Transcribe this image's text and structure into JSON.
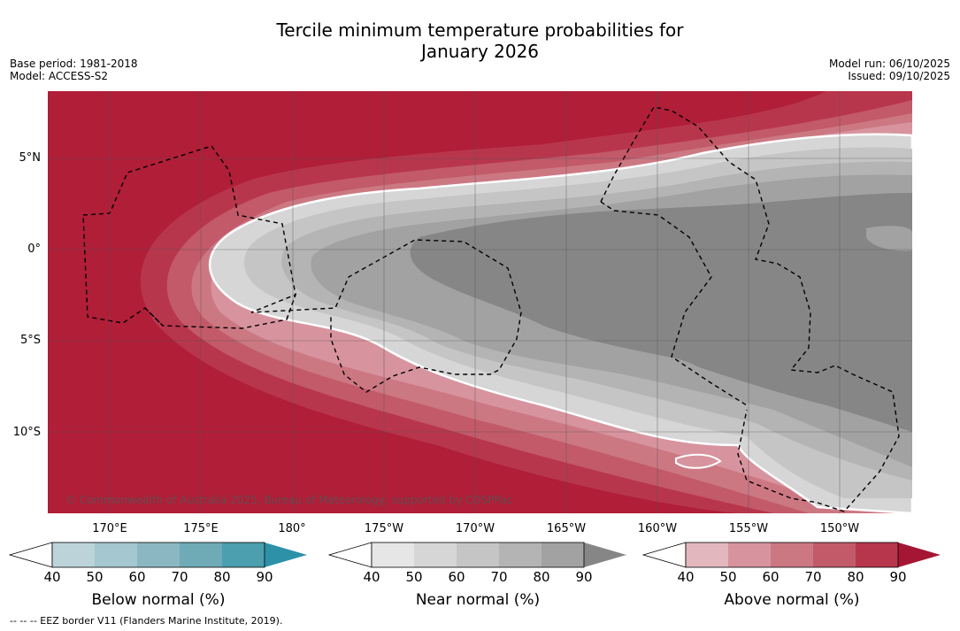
{
  "title_line1": "Tercile minimum temperature probabilities for",
  "title_line2": "January 2026",
  "meta_left": {
    "base_period": "Base period: 1981-2018",
    "model": "Model: ACCESS-S2"
  },
  "meta_right": {
    "model_run": "Model run: 06/10/2025",
    "issued": "Issued: 09/10/2025"
  },
  "lat_labels": [
    "5°N",
    "0°",
    "5°S",
    "10°S"
  ],
  "lon_labels": [
    "170°E",
    "175°E",
    "180°",
    "175°W",
    "170°W",
    "165°W",
    "160°W",
    "155°W",
    "150°W"
  ],
  "copyright": "© Commonwealth of Australia 2025, Bureau of Meteorology, supported by COSPPac",
  "colorbars": [
    {
      "title": "Below normal (%)",
      "ticks": [
        "40",
        "50",
        "60",
        "70",
        "80",
        "90"
      ],
      "colors": [
        "#ffffff",
        "#bdd3da",
        "#a5c7cf",
        "#8bb7c2",
        "#6eabb7",
        "#4c9fae",
        "#2d92a8"
      ]
    },
    {
      "title": "Near normal (%)",
      "ticks": [
        "40",
        "50",
        "60",
        "70",
        "80",
        "90"
      ],
      "colors": [
        "#ffffff",
        "#e6e6e6",
        "#d6d6d6",
        "#c5c5c5",
        "#b4b4b4",
        "#a2a2a2",
        "#868686"
      ]
    },
    {
      "title": "Above normal (%)",
      "ticks": [
        "40",
        "50",
        "60",
        "70",
        "80",
        "90"
      ],
      "colors": [
        "#ffffff",
        "#e2b7bd",
        "#d7949e",
        "#cc7883",
        "#c25a6a",
        "#b8364c",
        "#a51634"
      ]
    }
  ],
  "footer": "--  --  -- EEZ border V11 (Flanders Marine Institute, 2019)."
}
